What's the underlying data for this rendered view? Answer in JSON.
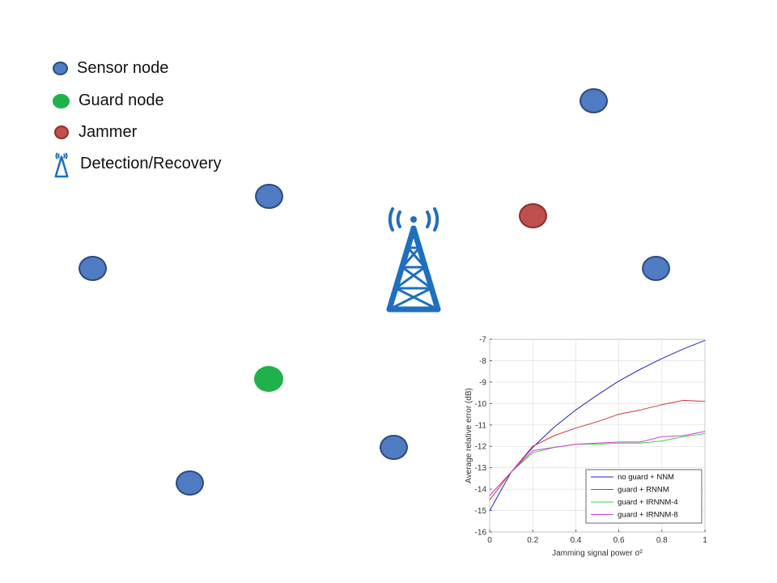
{
  "legend": {
    "items": [
      {
        "label": "Sensor node",
        "kind": "sensor"
      },
      {
        "label": "Guard node",
        "kind": "guard"
      },
      {
        "label": "Jammer",
        "kind": "jammer"
      },
      {
        "label": "Detection/Recovery",
        "kind": "tower",
        "icon": "radio-tower-icon"
      }
    ]
  },
  "colors": {
    "sensor": "#4f7cc2",
    "guard": "#1fb14b",
    "jammer": "#c0504d",
    "tower": "#1f6fbf"
  },
  "chart_data": {
    "type": "line",
    "xlabel": "Jamming signal power σ²",
    "ylabel": "Average relative error (dB)",
    "xlim": [
      0,
      1
    ],
    "ylim": [
      -16,
      -7
    ],
    "xticks": [
      "0",
      "0.2",
      "0.4",
      "0.6",
      "0.8",
      "1"
    ],
    "yticks": [
      "-16",
      "-15",
      "-14",
      "-13",
      "-12",
      "-11",
      "-10",
      "-9",
      "-8",
      "-7"
    ],
    "grid": true,
    "legend_position": "bottom-right",
    "x": [
      0,
      0.1,
      0.2,
      0.3,
      0.4,
      0.5,
      0.6,
      0.7,
      0.8,
      0.9,
      1.0
    ],
    "series": [
      {
        "name": "no guard + NNM",
        "color": "#2323c8",
        "values": [
          -15.0,
          -13.2,
          -12.05,
          -11.1,
          -10.3,
          -9.6,
          -8.95,
          -8.4,
          -7.9,
          -7.45,
          -7.05
        ]
      },
      {
        "name": "guard + RNNM",
        "color": "#c83a3a",
        "values": [
          -14.5,
          -13.2,
          -12.0,
          -11.5,
          -11.15,
          -10.85,
          -10.5,
          -10.3,
          -10.05,
          -9.85,
          -9.9
        ]
      },
      {
        "name": "guard + IRNNM-4",
        "color": "#3fd43f",
        "values": [
          -14.3,
          -13.2,
          -12.3,
          -12.05,
          -11.9,
          -11.9,
          -11.85,
          -11.85,
          -11.75,
          -11.55,
          -11.4
        ]
      },
      {
        "name": "guard + IRNNM-8",
        "color": "#d43fd4",
        "values": [
          -14.3,
          -13.2,
          -12.2,
          -12.05,
          -11.9,
          -11.85,
          -11.8,
          -11.8,
          -11.55,
          -11.5,
          -11.3
        ]
      }
    ]
  }
}
